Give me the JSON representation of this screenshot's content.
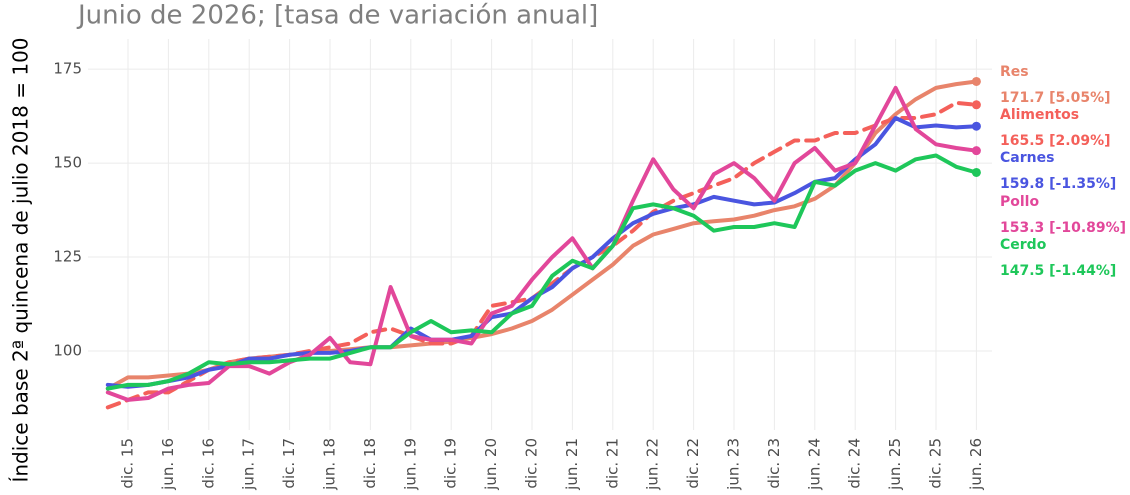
{
  "chart_data": {
    "type": "line",
    "title": "Junio de 2026; [tasa de variación anual]",
    "y_label": "Índice base 2ª quincena de julio 2018 = 100",
    "categories": [
      null,
      "dic. 15",
      null,
      "jun. 16",
      null,
      "dic. 16",
      null,
      "jun. 17",
      null,
      "dic. 17",
      null,
      "jun. 18",
      null,
      "dic. 18",
      null,
      "jun. 19",
      null,
      "dic. 19",
      null,
      "jun. 20",
      null,
      "dic. 20",
      null,
      "jun. 21",
      null,
      "dic. 21",
      null,
      "jun. 22",
      null,
      "dic. 22",
      null,
      "jun. 23",
      null,
      "dic. 23",
      null,
      "jun. 24",
      null,
      "dic. 24",
      null,
      "jun. 25",
      null,
      "dic. 25",
      null,
      "jun. 26"
    ],
    "ylim": [
      79,
      183
    ],
    "yticks": [
      100,
      125,
      150,
      175
    ],
    "grid": true,
    "series": [
      {
        "name": "Res",
        "color": "#e8846b",
        "dashed": false,
        "end_label": "171.7 [5.05%]",
        "values": [
          90,
          93,
          93,
          93.5,
          94,
          95,
          97,
          98,
          98.5,
          99,
          99.5,
          100,
          100.5,
          101,
          101,
          101.5,
          102,
          102.5,
          103.5,
          104.5,
          106,
          108,
          111,
          115,
          119,
          123,
          128,
          131,
          132.5,
          134,
          134.5,
          135,
          136,
          137.5,
          138.5,
          140.5,
          144,
          150,
          158,
          163,
          167,
          170,
          171,
          171.7
        ]
      },
      {
        "name": "Alimentos",
        "color": "#f4605a",
        "dashed": true,
        "end_label": "165.5 [2.09%]",
        "values": [
          85,
          87,
          89,
          89,
          92,
          95,
          97,
          98,
          98.5,
          99,
          100,
          101,
          102,
          105,
          106,
          104,
          102,
          102,
          104,
          112,
          113,
          114,
          118,
          122,
          125,
          128,
          132,
          137,
          140,
          142,
          144,
          146,
          150,
          153,
          156,
          156,
          158,
          158,
          160,
          162,
          162,
          163,
          166,
          165.5
        ]
      },
      {
        "name": "Carnes",
        "color": "#4a55e0",
        "dashed": false,
        "end_label": "159.8 [-1.35%]",
        "values": [
          91,
          90.5,
          91,
          92,
          93,
          95,
          96,
          98,
          98,
          99,
          99.5,
          99.5,
          100,
          101,
          101,
          106,
          103,
          103,
          104,
          109,
          110,
          114,
          117,
          122,
          125,
          130,
          134,
          136.5,
          138,
          139,
          141,
          140,
          139,
          139.5,
          142,
          145,
          146,
          151,
          155,
          162,
          159.5,
          160,
          159.5,
          159.8
        ]
      },
      {
        "name": "Pollo",
        "color": "#e2479a",
        "dashed": false,
        "end_label": "153.3 [-10.89%]",
        "values": [
          89,
          87,
          87.5,
          90,
          91,
          91.5,
          96,
          96,
          94,
          97,
          99,
          103.5,
          97,
          96.5,
          117,
          104,
          103,
          103,
          102,
          110,
          112,
          119,
          125,
          130,
          122,
          128,
          140,
          151,
          143,
          138,
          147,
          150,
          146,
          140,
          150,
          154,
          148,
          150,
          160,
          170,
          159,
          155,
          154,
          153.3
        ]
      },
      {
        "name": "Cerdo",
        "color": "#1ec75a",
        "dashed": false,
        "end_label": "147.5 [-1.44%]",
        "values": [
          90,
          91,
          91,
          92,
          94,
          97,
          96.5,
          97,
          97,
          97.5,
          98,
          98,
          99.5,
          101,
          101,
          105,
          108,
          105,
          105.5,
          105,
          110,
          112,
          120,
          124,
          122,
          128,
          138,
          139,
          138,
          136,
          132,
          133,
          133,
          134,
          133,
          145,
          144,
          148,
          150,
          148,
          151,
          152,
          149,
          147.5
        ]
      }
    ]
  }
}
